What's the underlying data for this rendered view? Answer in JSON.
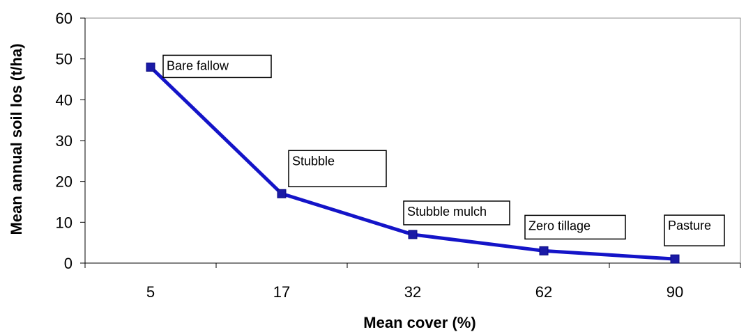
{
  "chart_data": {
    "type": "line",
    "title": "",
    "xlabel": "Mean cover (%)",
    "ylabel": "Mean annual soil los (t/ha)",
    "categories": [
      "5",
      "17",
      "32",
      "62",
      "90"
    ],
    "series": [
      {
        "values": [
          48,
          17,
          7,
          3,
          1
        ]
      }
    ],
    "annotations": [
      "Bare fallow",
      "Stubble",
      "Stubble mulch",
      "Zero tillage",
      "Pasture"
    ],
    "ylim": [
      0,
      60
    ],
    "yticks": [
      0,
      10,
      20,
      30,
      40,
      50,
      60
    ],
    "grid": false,
    "legend": "none",
    "colors": {
      "line": "#1414c8",
      "marker": "#1a1aa6",
      "axis": "#000000"
    }
  }
}
